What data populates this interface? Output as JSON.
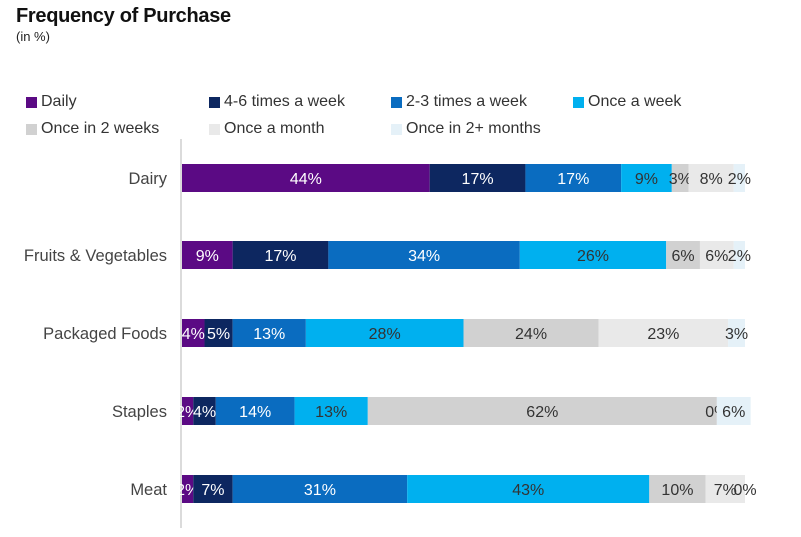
{
  "title": "Frequency of Purchase",
  "subtitle": "(in %)",
  "chart_data": {
    "type": "bar",
    "orientation": "horizontal",
    "stacked": true,
    "categories": [
      "Dairy",
      "Fruits & Vegetables",
      "Packaged Foods",
      "Staples",
      "Meat"
    ],
    "series": [
      {
        "name": "Daily",
        "color": "#5b0a84",
        "label_color": "#ffffff",
        "values": [
          44,
          9,
          4,
          2,
          2
        ]
      },
      {
        "name": "4-6 times a week",
        "color": "#0d2760",
        "label_color": "#ffffff",
        "values": [
          17,
          17,
          5,
          4,
          7
        ]
      },
      {
        "name": "2-3 times a week",
        "color": "#0a6cc0",
        "label_color": "#ffffff",
        "values": [
          17,
          34,
          13,
          14,
          31
        ]
      },
      {
        "name": "Once a week",
        "color": "#00b0ef",
        "label_color": "#333333",
        "values": [
          9,
          26,
          28,
          13,
          43
        ]
      },
      {
        "name": "Once in 2 weeks",
        "color": "#d1d1d1",
        "label_color": "#333333",
        "values": [
          3,
          6,
          24,
          62,
          10
        ]
      },
      {
        "name": "Once a month",
        "color": "#e9e9e9",
        "label_color": "#333333",
        "values": [
          8,
          6,
          23,
          0,
          7
        ]
      },
      {
        "name": "Once in 2+ months",
        "color": "#e5f1f8",
        "label_color": "#333333",
        "values": [
          2,
          2,
          3,
          6,
          0
        ]
      }
    ],
    "value_suffix": "%",
    "xlim": [
      0,
      100
    ],
    "legend_position": "top",
    "grid": false
  }
}
